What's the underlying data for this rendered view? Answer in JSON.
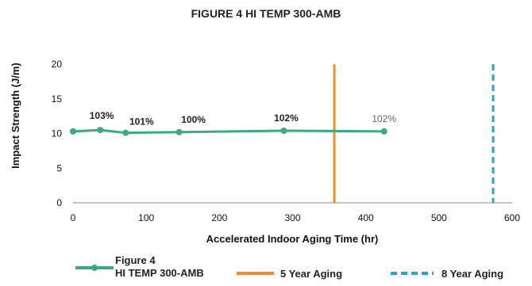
{
  "chart_data": {
    "type": "line",
    "title": "FIGURE 4 HI TEMP 300-AMB",
    "xlabel": "Accelerated Indoor Aging Time (hr)",
    "ylabel": "Impact Strength (J/m)",
    "xlim": [
      0,
      600
    ],
    "ylim": [
      0,
      20
    ],
    "xticks": [
      0,
      100,
      200,
      300,
      400,
      500,
      600
    ],
    "yticks": [
      0,
      5,
      10,
      15,
      20
    ],
    "grid": false,
    "legend_position": "bottom",
    "series": [
      {
        "name_lines": [
          "Figure 4",
          "HI TEMP 300-AMB"
        ],
        "color": "#3aaa84",
        "x": [
          0,
          37,
          72,
          145,
          288,
          425
        ],
        "y": [
          10.3,
          10.5,
          10.1,
          10.2,
          10.4,
          10.3
        ],
        "labels": [
          "",
          "103%",
          "101%",
          "100%",
          "102%",
          "102%"
        ]
      }
    ],
    "reference_lines": [
      {
        "name": "5 Year Aging",
        "x": 357,
        "color": "#f28c28",
        "style": "solid"
      },
      {
        "name": "8 Year Aging",
        "x": 574,
        "color": "#2a9fd8",
        "style": "dashed"
      }
    ]
  }
}
